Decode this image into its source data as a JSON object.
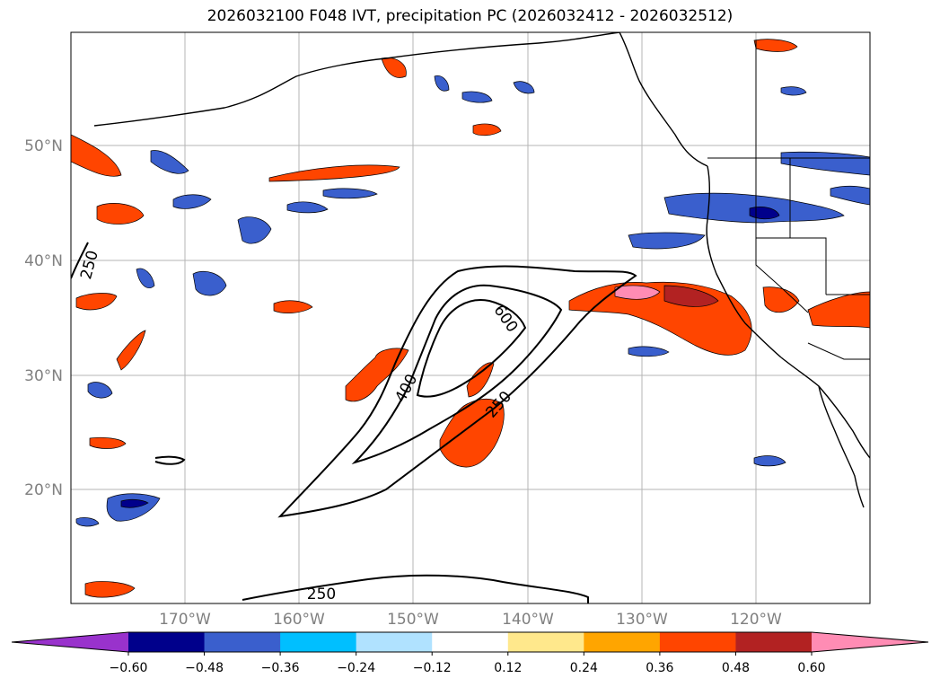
{
  "title": "2026032100 F048 IVT, precipitation PC (2026032412 - 2026032512)",
  "map": {
    "lat_labels": [
      "50°N",
      "40°N",
      "30°N",
      "20°N"
    ],
    "lon_labels": [
      "170°W",
      "160°W",
      "150°W",
      "140°W",
      "130°W",
      "120°W"
    ],
    "contour_labels": [
      "250",
      "400",
      "600",
      "250",
      "250"
    ]
  },
  "colorbar": {
    "ticks": [
      "−0.60",
      "−0.48",
      "−0.36",
      "−0.24",
      "−0.12",
      "0.12",
      "0.24",
      "0.36",
      "0.48",
      "0.60"
    ],
    "colors": [
      "#9932cc",
      "#00008b",
      "#3a5fcd",
      "#00bfff",
      "#b0e2ff",
      "#ffffff",
      "#ffe88c",
      "#ffa500",
      "#ff4500",
      "#b22222",
      "#ff8cb4"
    ]
  }
}
